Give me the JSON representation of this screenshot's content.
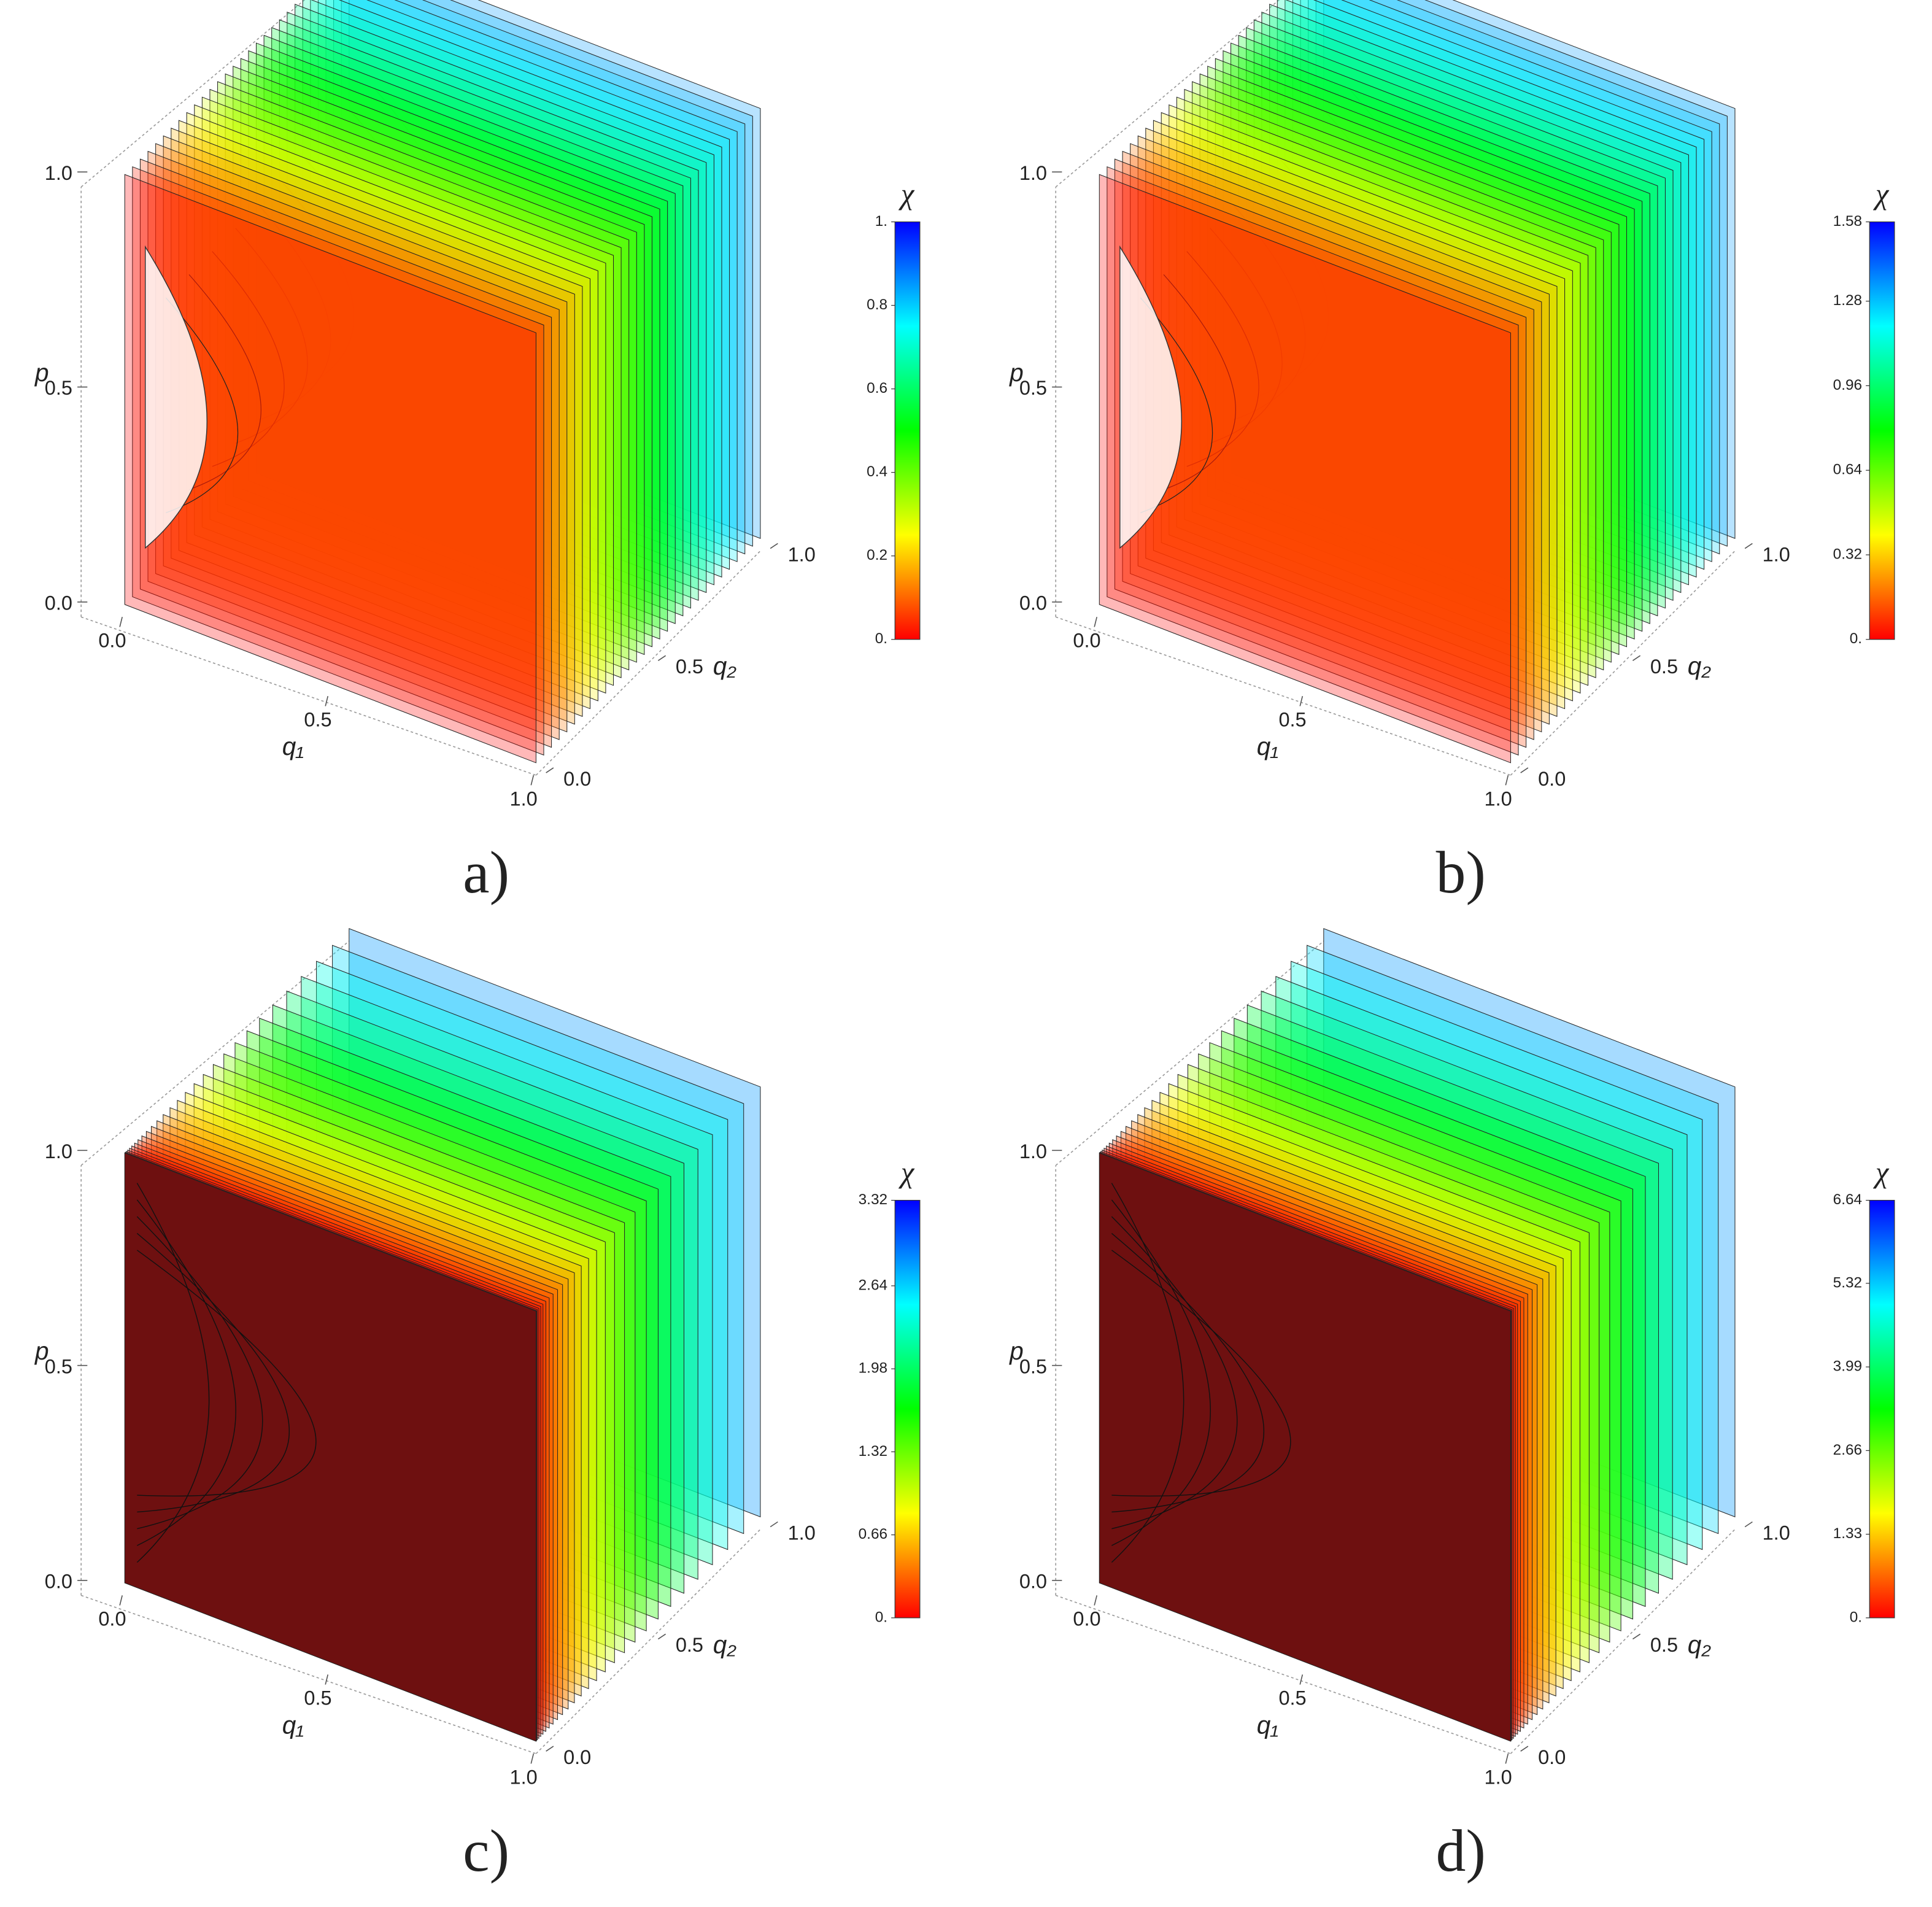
{
  "chart_data": [
    {
      "type": "contour3d",
      "panel_label": "a)",
      "xlabel": "q₁",
      "ylabel": "q₂",
      "zlabel": "p",
      "xlim": [
        0,
        1
      ],
      "ylim": [
        0,
        1
      ],
      "zlim": [
        0,
        1
      ],
      "xticks": [
        {
          "value": 0,
          "label": "0.0"
        },
        0.5,
        {
          "value": 1,
          "label": "1.0"
        }
      ],
      "yticks": [
        {
          "value": 0,
          "label": "0.0"
        },
        0.5,
        {
          "value": 1,
          "label": "1.0"
        }
      ],
      "zticks": [
        {
          "value": 0,
          "label": "0.0"
        },
        0.5,
        {
          "value": 1,
          "label": "1.0"
        }
      ],
      "colorbar": {
        "title": "χ",
        "lim": [
          0,
          1
        ],
        "colors": [
          "#ff0000",
          "#ffff00",
          "#00ff00",
          "#00ffff",
          "#0000ff"
        ],
        "ticks": [
          {
            "value": 0,
            "label": "0."
          },
          0.2,
          0.4,
          0.6,
          0.8,
          {
            "value": 1,
            "label": "1."
          }
        ]
      }
    },
    {
      "type": "contour3d",
      "panel_label": "b)",
      "xlabel": "q₁",
      "ylabel": "q₂",
      "zlabel": "p",
      "xlim": [
        0,
        1
      ],
      "ylim": [
        0,
        1
      ],
      "zlim": [
        0,
        1
      ],
      "xticks": [
        {
          "value": 0,
          "label": "0.0"
        },
        0.5,
        {
          "value": 1,
          "label": "1.0"
        }
      ],
      "yticks": [
        {
          "value": 0,
          "label": "0.0"
        },
        0.5,
        {
          "value": 1,
          "label": "1.0"
        }
      ],
      "zticks": [
        {
          "value": 0,
          "label": "0.0"
        },
        0.5,
        {
          "value": 1,
          "label": "1.0"
        }
      ],
      "colorbar": {
        "title": "χ",
        "lim": [
          0,
          1.58
        ],
        "colors": [
          "#ff0000",
          "#ffff00",
          "#00ff00",
          "#00ffff",
          "#0000ff"
        ],
        "ticks": [
          {
            "value": 0,
            "label": "0."
          },
          0.32,
          0.64,
          0.96,
          1.28,
          1.58
        ]
      }
    },
    {
      "type": "contour3d",
      "panel_label": "c)",
      "xlabel": "q₁",
      "ylabel": "q₂",
      "zlabel": "p",
      "xlim": [
        0,
        1
      ],
      "ylim": [
        0,
        1
      ],
      "zlim": [
        0,
        1
      ],
      "xticks": [
        {
          "value": 0,
          "label": "0.0"
        },
        0.5,
        {
          "value": 1,
          "label": "1.0"
        }
      ],
      "yticks": [
        {
          "value": 0,
          "label": "0.0"
        },
        0.5,
        {
          "value": 1,
          "label": "1.0"
        }
      ],
      "zticks": [
        {
          "value": 0,
          "label": "0.0"
        },
        0.5,
        {
          "value": 1,
          "label": "1.0"
        }
      ],
      "colorbar": {
        "title": "χ",
        "lim": [
          0,
          3.32
        ],
        "colors": [
          "#ff0000",
          "#ffff00",
          "#00ff00",
          "#00ffff",
          "#0000ff"
        ],
        "ticks": [
          {
            "value": 0,
            "label": "0."
          },
          0.66,
          1.32,
          1.98,
          2.64,
          3.32
        ]
      }
    },
    {
      "type": "contour3d",
      "panel_label": "d)",
      "xlabel": "q₁",
      "ylabel": "q₂",
      "zlabel": "p",
      "xlim": [
        0,
        1
      ],
      "ylim": [
        0,
        1
      ],
      "zlim": [
        0,
        1
      ],
      "xticks": [
        {
          "value": 0,
          "label": "0.0"
        },
        0.5,
        {
          "value": 1,
          "label": "1.0"
        }
      ],
      "yticks": [
        {
          "value": 0,
          "label": "0.0"
        },
        0.5,
        {
          "value": 1,
          "label": "1.0"
        }
      ],
      "zticks": [
        {
          "value": 0,
          "label": "0.0"
        },
        0.5,
        {
          "value": 1,
          "label": "1.0"
        }
      ],
      "colorbar": {
        "title": "χ",
        "lim": [
          0,
          6.64
        ],
        "colors": [
          "#ff0000",
          "#ffff00",
          "#00ff00",
          "#00ffff",
          "#0000ff"
        ],
        "ticks": [
          {
            "value": 0,
            "label": "0."
          },
          1.33,
          2.66,
          3.99,
          5.32,
          6.64
        ]
      }
    }
  ]
}
